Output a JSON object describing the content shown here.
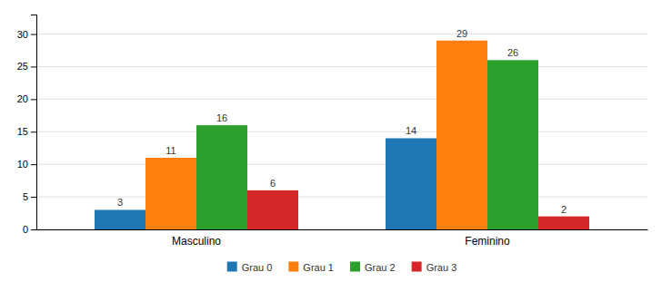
{
  "chart_data": {
    "type": "bar",
    "categories": [
      "Masculino",
      "Feminino"
    ],
    "series": [
      {
        "name": "Grau 0",
        "values": [
          3,
          14
        ]
      },
      {
        "name": "Grau 1",
        "values": [
          11,
          29
        ]
      },
      {
        "name": "Grau 2",
        "values": [
          16,
          26
        ]
      },
      {
        "name": "Grau 3",
        "values": [
          6,
          2
        ]
      }
    ],
    "ylim": [
      0,
      33
    ],
    "yticks": [
      0,
      5,
      10,
      15,
      20,
      25,
      30
    ],
    "grid": true,
    "legend": "bottom",
    "data_labels": true
  }
}
